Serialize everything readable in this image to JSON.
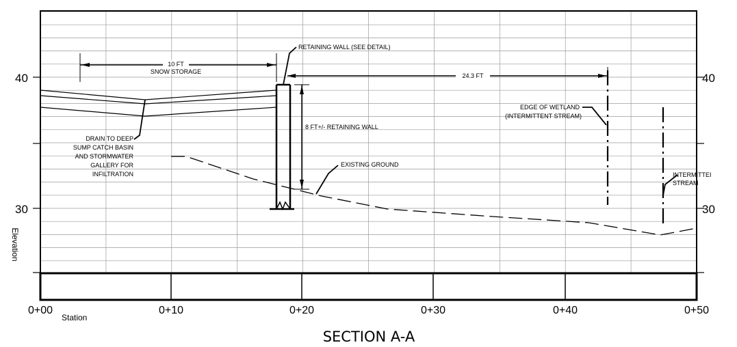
{
  "section": {
    "title": "SECTION  A-A",
    "xlabel": "Station",
    "ylabel": "Elevation"
  },
  "axes": {
    "elevation_ticks": [
      {
        "value": 40,
        "left_label": "40",
        "right_label": "40"
      },
      {
        "value": 30,
        "left_label": "30",
        "right_label": "30"
      }
    ],
    "station_ticks": [
      "0+00",
      "0+10",
      "0+20",
      "0+30",
      "0+40",
      "0+50"
    ]
  },
  "annotations": {
    "snow_storage_dim": "10 FT",
    "snow_storage_label": "SNOW STORAGE",
    "retaining_wall": "RETAINING WALL (SEE DETAIL)",
    "wetland_dim": "24.3 FT",
    "wall_height": "8 FT+/- RETAINING WALL",
    "edge_of_wetland_1": "EDGE OF WETLAND",
    "edge_of_wetland_2": "(INTERMITTENT STREAM)",
    "drain_1": "DRAIN TO DEEP",
    "drain_2": "SUMP CATCH BASIN",
    "drain_3": "AND STORMWATER",
    "drain_4": "GALLERY FOR",
    "drain_5": "INFILTRATION",
    "existing_ground": "EXISTING GROUND",
    "intermittent_1": "INTERMITTEI",
    "intermittent_2": "STREAM"
  },
  "colors": {
    "line": "#000000",
    "grid": "#9a9a9a",
    "background": "#ffffff"
  }
}
